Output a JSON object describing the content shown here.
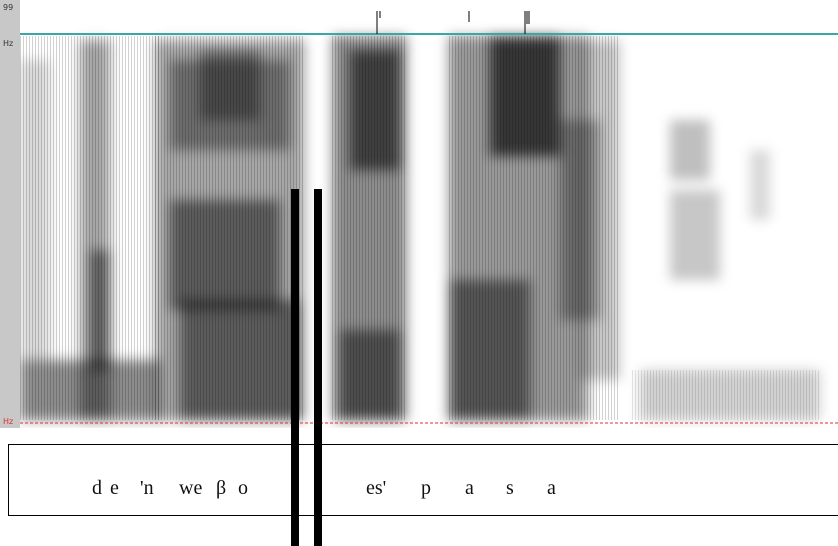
{
  "axis": {
    "top_value": "99",
    "top_unit": "Hz",
    "bottom_unit": "Hz"
  },
  "colors": {
    "pitch_line": "#3aa6a8",
    "baseline": "#e03030",
    "axis_strip": "#c8c8c8"
  },
  "transcription": {
    "segments": [
      "d",
      "e",
      "'n",
      "we",
      "β",
      "o",
      "es'",
      "p",
      "a",
      "s",
      "a"
    ]
  }
}
